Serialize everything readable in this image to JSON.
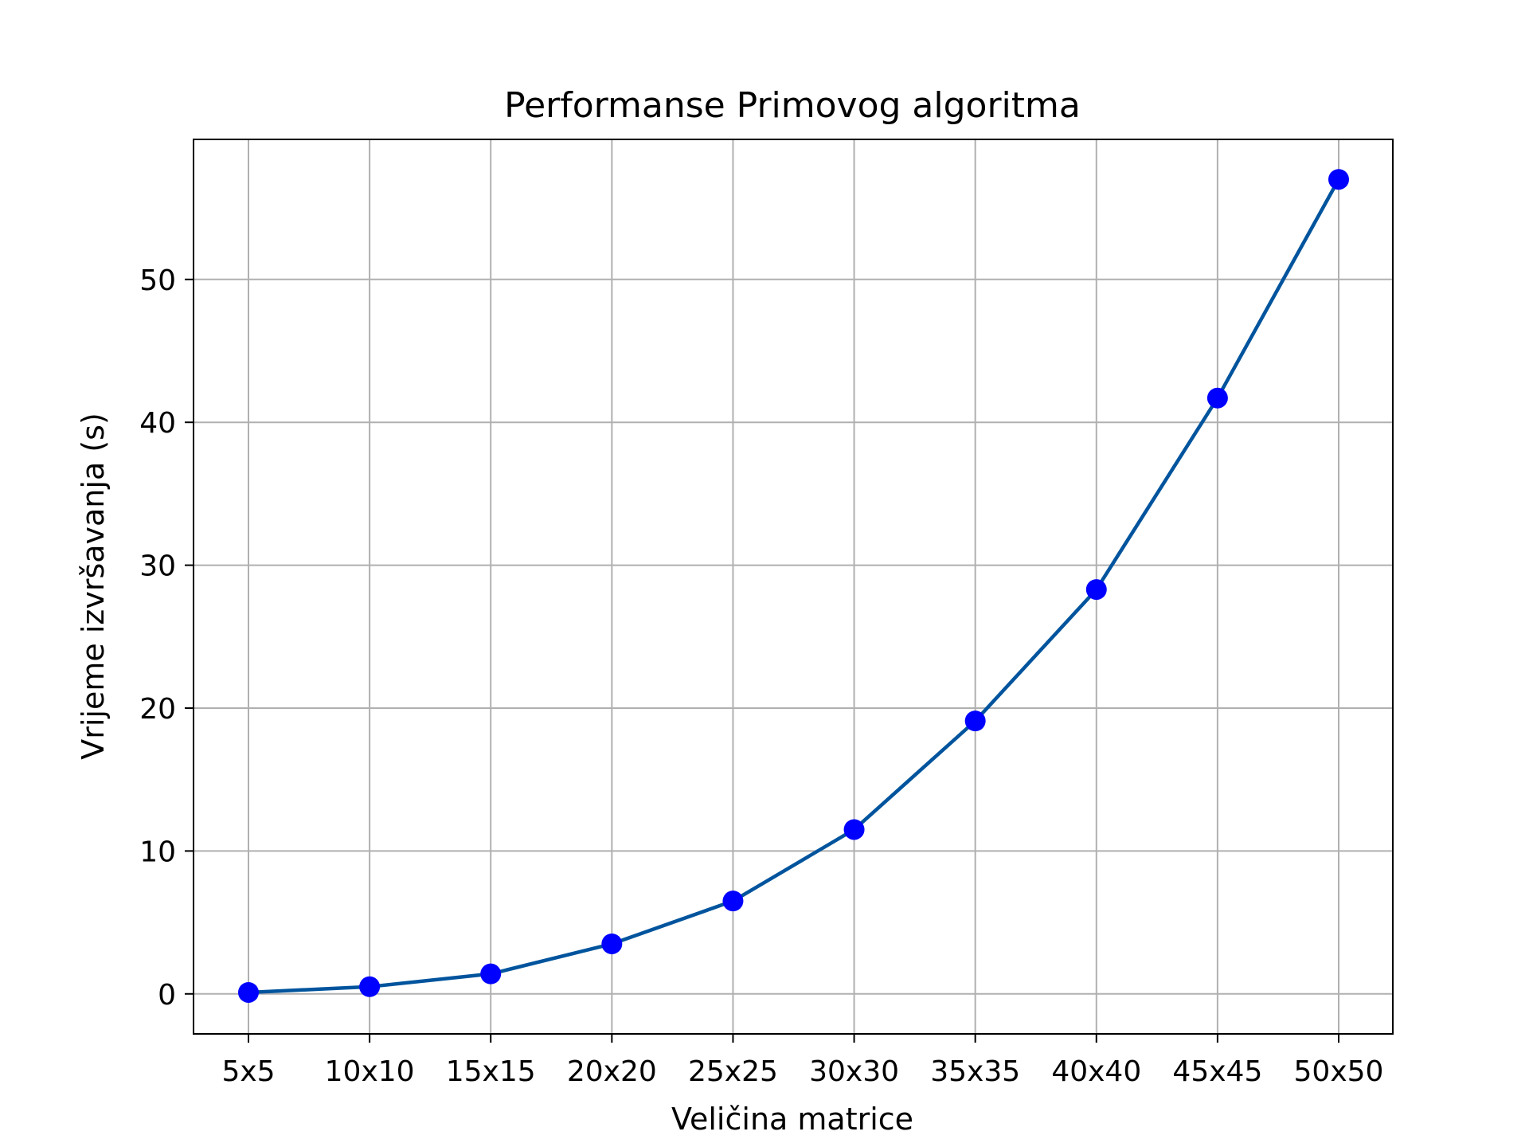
{
  "chart_data": {
    "type": "line",
    "title": "Performanse Primovog algoritma",
    "xlabel": "Veličina matrice",
    "ylabel": "Vrijeme izvršavanja (s)",
    "categories": [
      "5x5",
      "10x10",
      "15x15",
      "20x20",
      "25x25",
      "30x30",
      "35x35",
      "40x40",
      "45x45",
      "50x50"
    ],
    "series": [
      {
        "values": [
          0.1,
          0.5,
          1.4,
          3.5,
          6.5,
          11.5,
          19.1,
          28.3,
          41.7,
          57.0
        ]
      }
    ],
    "yticks": [
      0,
      10,
      20,
      30,
      40,
      50
    ],
    "ylim": [
      -2.8,
      59.8
    ],
    "grid": true,
    "line_color": "#00549d",
    "marker_color": "#0000ff",
    "grid_color": "#b0b0b0"
  }
}
